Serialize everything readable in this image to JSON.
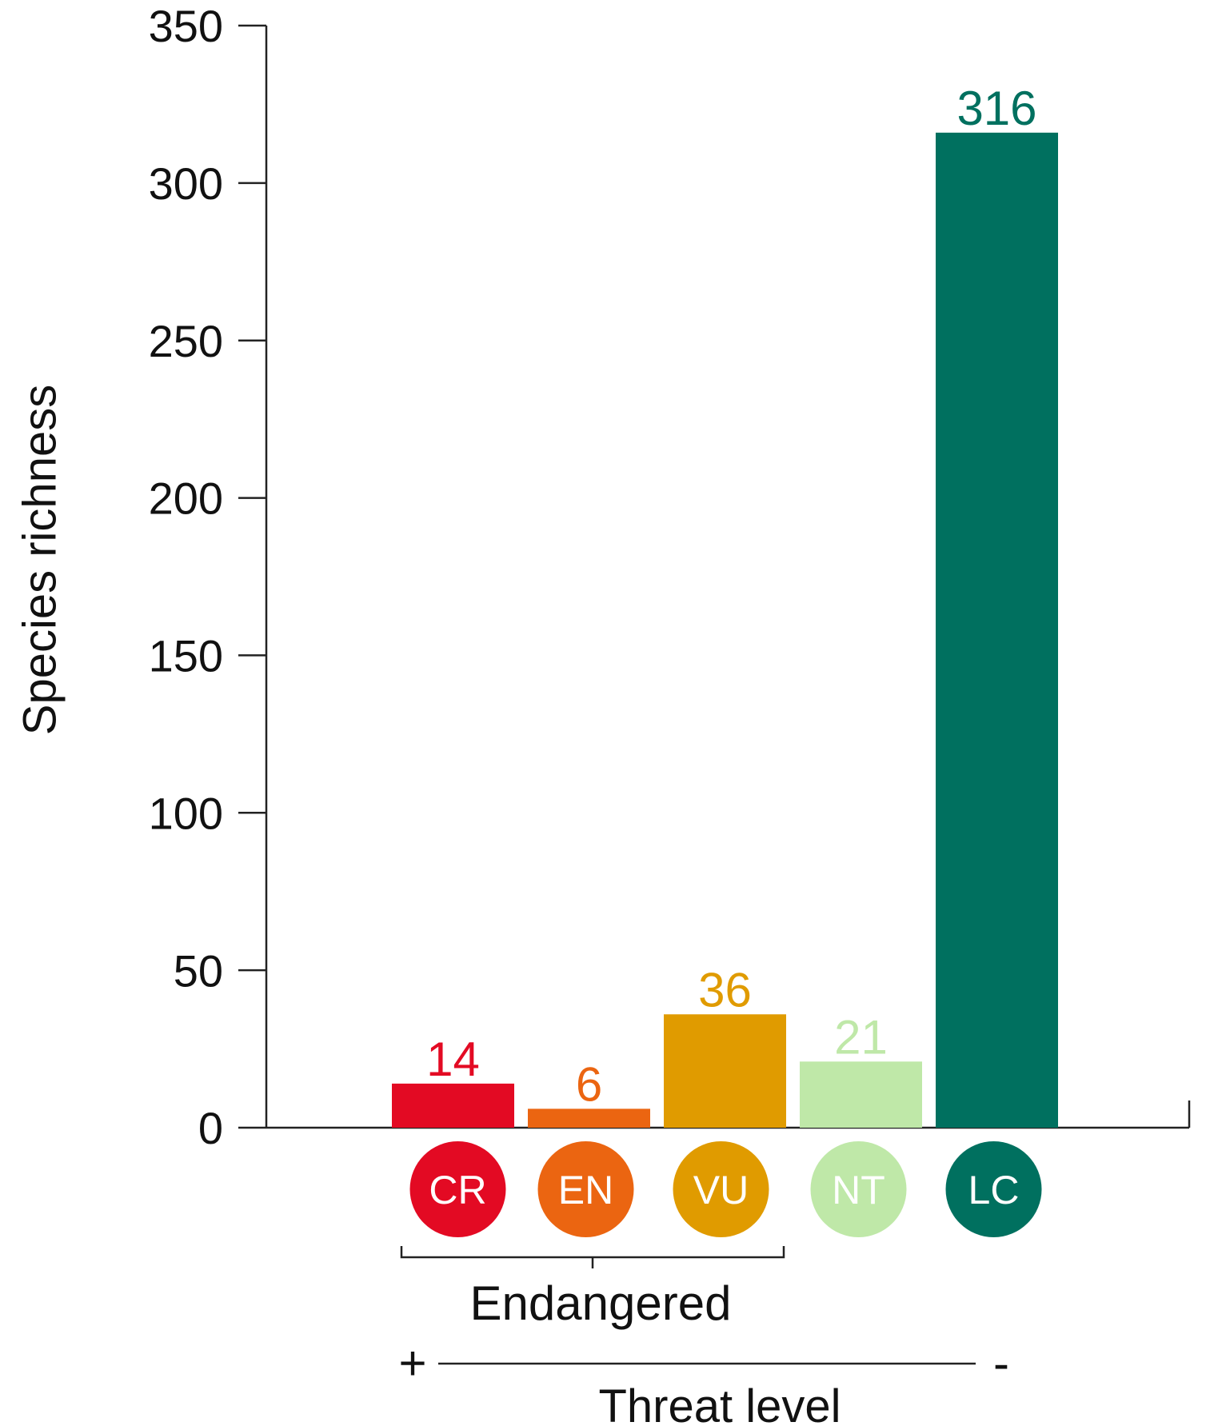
{
  "chart_data": {
    "type": "bar",
    "categories": [
      "CR",
      "EN",
      "VU",
      "NT",
      "LC"
    ],
    "values": [
      14,
      6,
      36,
      21,
      316
    ],
    "value_labels": [
      "14",
      "6",
      "36",
      "21",
      "316"
    ],
    "colors": [
      "#E30A23",
      "#EB6511",
      "#E09B00",
      "#BFE8A8",
      "#00705F"
    ],
    "ylabel": "Species richness",
    "xlabel": "Threat level",
    "ylim": [
      0,
      350
    ],
    "yticks": [
      0,
      50,
      100,
      150,
      200,
      250,
      300,
      350
    ],
    "ytick_labels": [
      "0",
      "50",
      "100",
      "150",
      "200",
      "250",
      "300",
      "350"
    ],
    "group": {
      "label": "Endangered",
      "categories": [
        "CR",
        "EN",
        "VU"
      ]
    },
    "threat_scale": {
      "high": "+",
      "low": "-"
    },
    "grid": false,
    "legend": "none"
  }
}
